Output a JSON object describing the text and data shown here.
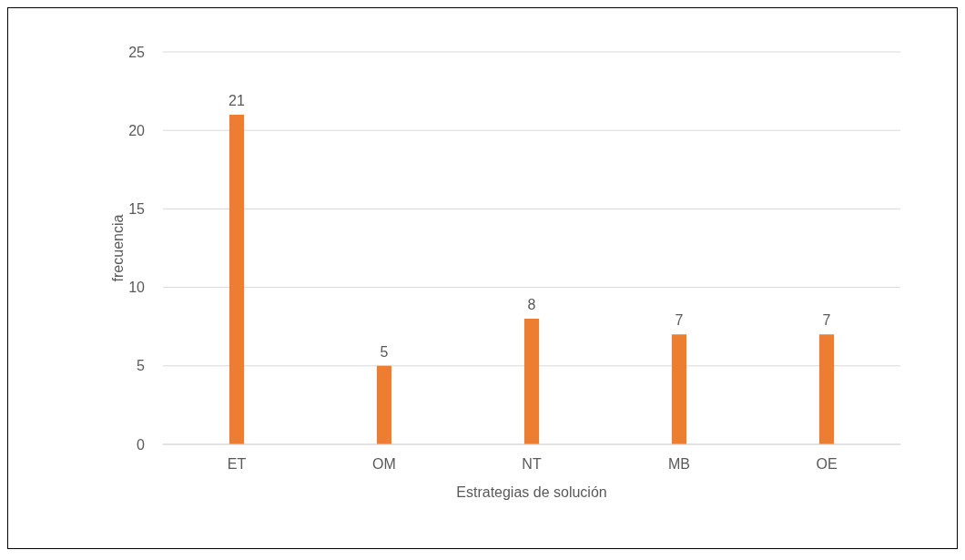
{
  "chart_data": {
    "type": "bar",
    "xlabel": "Estrategias de solución",
    "ylabel": "frecuencia",
    "categories": [
      "ET",
      "OM",
      "NT",
      "MB",
      "OE"
    ],
    "values": [
      21,
      5,
      8,
      7,
      7
    ],
    "color": "#ed7d31",
    "ylim": [
      0,
      25
    ],
    "yticks": [
      0,
      5,
      10,
      15,
      20,
      25
    ],
    "grid": "y",
    "data_labels": true
  }
}
